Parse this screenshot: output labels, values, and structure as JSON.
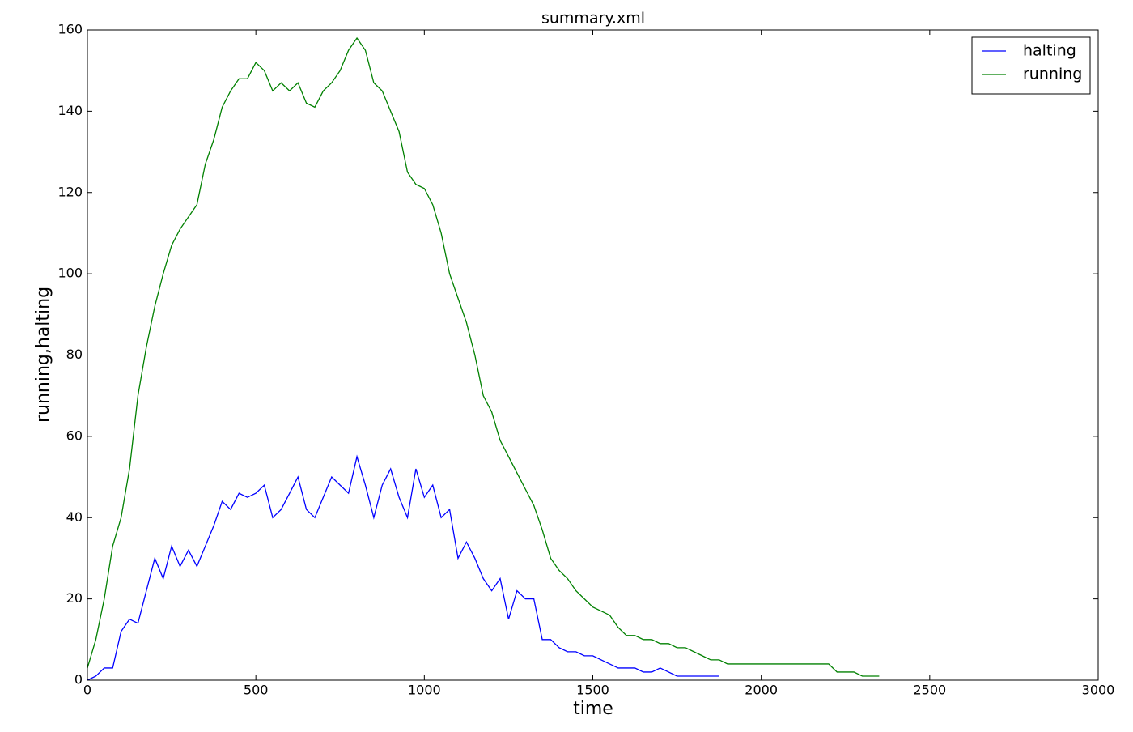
{
  "chart_data": {
    "type": "line",
    "title": "summary.xml",
    "x_label": "time",
    "y_label": "running,halting",
    "x": [
      0,
      25,
      50,
      75,
      100,
      125,
      150,
      175,
      200,
      225,
      250,
      275,
      300,
      325,
      350,
      375,
      400,
      425,
      450,
      475,
      500,
      525,
      550,
      575,
      600,
      625,
      650,
      675,
      700,
      725,
      750,
      775,
      800,
      825,
      850,
      875,
      900,
      925,
      950,
      975,
      1000,
      1025,
      1050,
      1075,
      1100,
      1125,
      1150,
      1175,
      1200,
      1225,
      1250,
      1275,
      1300,
      1325,
      1350,
      1375,
      1400,
      1425,
      1450,
      1475,
      1500,
      1525,
      1550,
      1575,
      1600,
      1625,
      1650,
      1675,
      1700,
      1725,
      1750,
      1775,
      1800,
      1825,
      1850,
      1875,
      1900,
      1925,
      1950,
      1975,
      2000,
      2025,
      2050,
      2075,
      2100,
      2125,
      2150,
      2175,
      2200,
      2225,
      2250,
      2275,
      2300,
      2325,
      2350
    ],
    "series": [
      {
        "name": "halting",
        "color": "#0000ff",
        "values": [
          0,
          1,
          3,
          3,
          12,
          15,
          14,
          22,
          30,
          25,
          33,
          28,
          32,
          28,
          33,
          38,
          44,
          42,
          46,
          45,
          46,
          48,
          40,
          42,
          46,
          50,
          42,
          40,
          45,
          50,
          48,
          46,
          55,
          48,
          40,
          48,
          52,
          45,
          40,
          52,
          45,
          48,
          40,
          42,
          30,
          34,
          30,
          25,
          22,
          25,
          15,
          22,
          20,
          20,
          10,
          10,
          8,
          7,
          7,
          6,
          6,
          5,
          4,
          3,
          3,
          3,
          2,
          2,
          3,
          2,
          1,
          1,
          1,
          1,
          1,
          1,
          null,
          null,
          null,
          null,
          null,
          null,
          null,
          null,
          null,
          null,
          null,
          null,
          null,
          null,
          null,
          null,
          null,
          null,
          null
        ]
      },
      {
        "name": "running",
        "color": "#008000",
        "values": [
          3,
          10,
          20,
          33,
          40,
          52,
          70,
          82,
          92,
          100,
          107,
          111,
          114,
          117,
          127,
          133,
          141,
          145,
          148,
          148,
          152,
          150,
          145,
          147,
          145,
          147,
          142,
          141,
          145,
          147,
          150,
          155,
          158,
          155,
          147,
          145,
          140,
          135,
          125,
          122,
          121,
          117,
          110,
          100,
          94,
          88,
          80,
          70,
          66,
          59,
          55,
          51,
          47,
          43,
          37,
          30,
          27,
          25,
          22,
          20,
          18,
          17,
          16,
          13,
          11,
          11,
          10,
          10,
          9,
          9,
          8,
          8,
          7,
          6,
          5,
          5,
          4,
          4,
          4,
          4,
          4,
          4,
          4,
          4,
          4,
          4,
          4,
          4,
          4,
          2,
          2,
          2,
          1,
          1,
          1
        ]
      }
    ],
    "xlim": [
      0,
      3000
    ],
    "xticks": [
      0,
      500,
      1000,
      1500,
      2000,
      2500,
      3000
    ],
    "ylim": [
      0,
      160
    ],
    "yticks": [
      0,
      20,
      40,
      60,
      80,
      100,
      120,
      140,
      160
    ],
    "grid": false,
    "legend": "upper right"
  }
}
